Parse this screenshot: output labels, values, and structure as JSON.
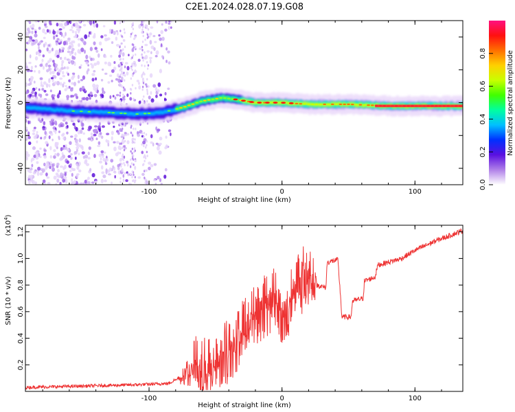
{
  "title": "C2E1.2024.028.07.19.G08",
  "chart_data": [
    {
      "type": "heatmap",
      "name": "spectrogram",
      "xlabel": "Height of straight line (km)",
      "ylabel": "Frequency (Hz)",
      "xlim": [
        -193,
        136
      ],
      "ylim": [
        -50,
        50
      ],
      "xticks": [
        -100,
        0,
        100
      ],
      "yticks": [
        -40,
        -20,
        0,
        20,
        40
      ],
      "trace": [
        {
          "x": -193,
          "f": -3
        },
        {
          "x": -160,
          "f": -5
        },
        {
          "x": -130,
          "f": -6
        },
        {
          "x": -110,
          "f": -7
        },
        {
          "x": -90,
          "f": -6
        },
        {
          "x": -75,
          "f": -3
        },
        {
          "x": -60,
          "f": 1
        },
        {
          "x": -45,
          "f": 3
        },
        {
          "x": -35,
          "f": 2
        },
        {
          "x": -20,
          "f": 0
        },
        {
          "x": 0,
          "f": 0
        },
        {
          "x": 20,
          "f": -1
        },
        {
          "x": 50,
          "f": -1
        },
        {
          "x": 80,
          "f": -2
        },
        {
          "x": 136,
          "f": -2
        }
      ],
      "colorbar": {
        "label": "Normalized spectral amplitude",
        "range": [
          0,
          1
        ],
        "ticks": [
          "0.0",
          "0.2",
          "0.4",
          "0.6",
          "0.8"
        ],
        "colors": [
          "#ffffff",
          "#b080e8",
          "#5a10e0",
          "#0030ff",
          "#00c0ff",
          "#00ffa0",
          "#40ff00",
          "#c8ff00",
          "#ffd000",
          "#ff7000",
          "#ff1010",
          "#ff1080"
        ]
      }
    },
    {
      "type": "line",
      "name": "snr",
      "xlabel": "Height of straight line (km)",
      "ylabel": "SNR (10 * v/v)",
      "scale_label": "(x10",
      "scale_exp": "4",
      "scale_close": ")",
      "xlim": [
        -193,
        136
      ],
      "ylim": [
        0,
        1.25
      ],
      "xticks": [
        -100,
        0,
        100
      ],
      "yticks": [
        "0.2",
        "0.4",
        "0.6",
        "0.8",
        "1.0",
        "1.2"
      ],
      "line_color": "#ee3333",
      "series": [
        {
          "x": -193,
          "y": 0.03
        },
        {
          "x": -150,
          "y": 0.04
        },
        {
          "x": -110,
          "y": 0.05
        },
        {
          "x": -85,
          "y": 0.06
        },
        {
          "x": -75,
          "y": 0.12
        },
        {
          "x": -65,
          "y": 0.28
        },
        {
          "x": -55,
          "y": 0.22
        },
        {
          "x": -45,
          "y": 0.32
        },
        {
          "x": -35,
          "y": 0.45
        },
        {
          "x": -25,
          "y": 0.58
        },
        {
          "x": -15,
          "y": 0.7
        },
        {
          "x": -5,
          "y": 0.78
        },
        {
          "x": 0,
          "y": 0.62
        },
        {
          "x": 10,
          "y": 0.84
        },
        {
          "x": 20,
          "y": 0.96
        },
        {
          "x": 25,
          "y": 0.9
        },
        {
          "x": 26,
          "y": 0.8
        },
        {
          "x": 33,
          "y": 0.78
        },
        {
          "x": 34,
          "y": 0.97
        },
        {
          "x": 42,
          "y": 0.99
        },
        {
          "x": 44,
          "y": 0.72
        },
        {
          "x": 45,
          "y": 0.56
        },
        {
          "x": 52,
          "y": 0.56
        },
        {
          "x": 53,
          "y": 0.68
        },
        {
          "x": 61,
          "y": 0.7
        },
        {
          "x": 62,
          "y": 0.83
        },
        {
          "x": 70,
          "y": 0.86
        },
        {
          "x": 72,
          "y": 0.95
        },
        {
          "x": 90,
          "y": 1.0
        },
        {
          "x": 100,
          "y": 1.06
        },
        {
          "x": 115,
          "y": 1.13
        },
        {
          "x": 136,
          "y": 1.21
        }
      ]
    }
  ]
}
